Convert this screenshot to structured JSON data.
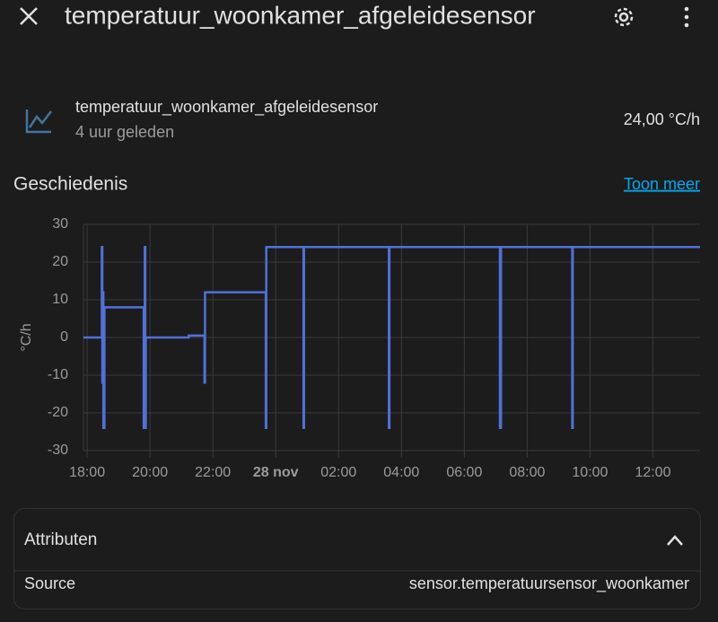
{
  "header": {
    "title": "temperatuur_woonkamer_afgeleidesensor"
  },
  "entity": {
    "name": "temperatuur_woonkamer_afgeleidesensor",
    "last_changed": "4 uur geleden",
    "state": "24,00 °C/h"
  },
  "history": {
    "title": "Geschiedenis",
    "more_link": "Toon meer",
    "chart_data": {
      "type": "line",
      "step": true,
      "color": "#5170d8",
      "ylabel": "°C/h",
      "x": [
        "17:53",
        "18:28",
        "18:29",
        "18:30",
        "18:31",
        "18:33",
        "19:48",
        "19:50",
        "19:51",
        "19:52",
        "21:14",
        "21:44",
        "21:45",
        "23:41",
        "23:42",
        "00:53",
        "00:54",
        "03:36",
        "03:37",
        "07:08",
        "07:10",
        "09:26",
        "09:27",
        "13:30"
      ],
      "values": [
        0,
        24,
        -12,
        12,
        -24,
        8,
        -24,
        24,
        -24,
        0,
        0.5,
        -12,
        12,
        -24,
        24,
        -24,
        24,
        -24,
        24,
        -24,
        24,
        -24,
        24,
        24
      ],
      "xlim": [
        "17:53",
        "13:30"
      ],
      "xticks": [
        "18:00",
        "20:00",
        "22:00",
        {
          "value": "00:00",
          "label": "28 nov"
        },
        "02:00",
        "04:00",
        "06:00",
        "08:00",
        "10:00",
        "12:00"
      ],
      "ylim": [
        -30,
        30
      ],
      "yticks": [
        -30,
        -20,
        -10,
        0,
        10,
        20,
        30
      ],
      "grid": true
    }
  },
  "attributes": {
    "title": "Attributen",
    "rows": [
      [
        "Source",
        "sensor.temperatuursensor_woonkamer"
      ]
    ]
  }
}
